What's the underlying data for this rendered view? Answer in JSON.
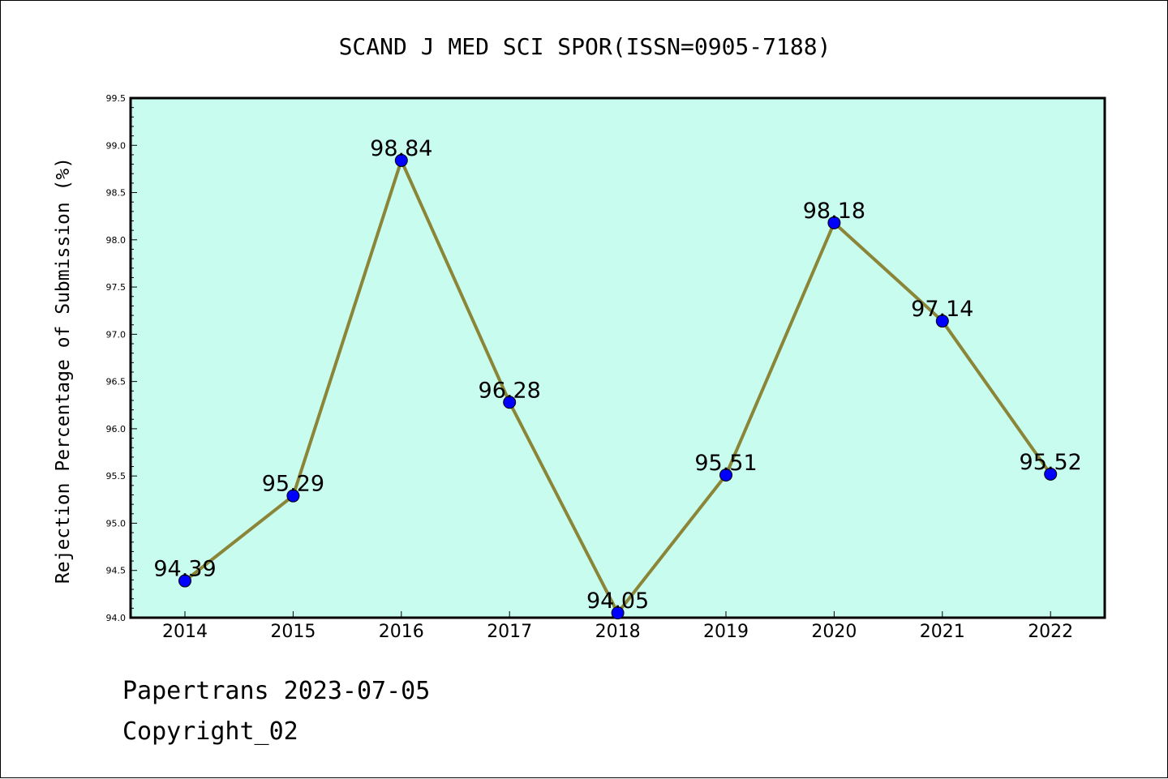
{
  "chart_data": {
    "type": "line",
    "title": "SCAND J MED SCI SPOR(ISSN=0905-7188)",
    "xlabel": "",
    "ylabel": "Rejection Percentage of Submission (%)",
    "categories": [
      "2014",
      "2015",
      "2016",
      "2017",
      "2018",
      "2019",
      "2020",
      "2021",
      "2022"
    ],
    "values": [
      94.39,
      95.29,
      98.84,
      96.28,
      94.05,
      95.51,
      98.18,
      97.14,
      95.52
    ],
    "data_labels": [
      "94.39",
      "95.29",
      "98.84",
      "96.28",
      "94.05",
      "95.51",
      "98.18",
      "97.14",
      "95.52"
    ],
    "ylim": [
      94.0,
      99.5
    ],
    "yticks": [
      "94.0",
      "94.5",
      "95.0",
      "95.5",
      "96.0",
      "96.5",
      "97.0",
      "97.5",
      "98.0",
      "98.5",
      "99.0",
      "99.5"
    ],
    "grid": false,
    "colors": {
      "plot_background": "#c8fcee",
      "line": "#8b8538",
      "marker": "#0000ff"
    }
  },
  "footer": {
    "source": "Papertrans 2023-07-05",
    "copyright": "Copyright_02"
  }
}
